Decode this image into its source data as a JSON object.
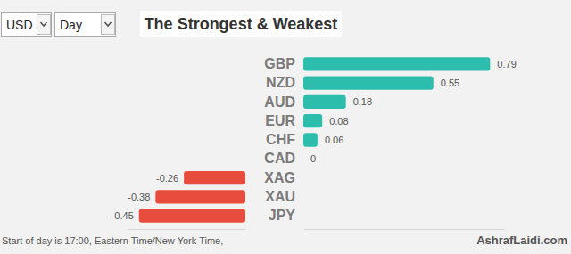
{
  "chart_data": {
    "type": "bar",
    "orientation": "horizontal",
    "title": "The Strongest & Weakest",
    "dropdowns": [
      "USD",
      "Day"
    ],
    "note": "Start of day is 17:00, Eastern Time/New York Time,",
    "source": "AshrafLaidi.com",
    "categories": [
      "GBP",
      "NZD",
      "AUD",
      "EUR",
      "CHF",
      "CAD",
      "XAG",
      "XAU",
      "JPY"
    ],
    "values": [
      0.79,
      0.55,
      0.18,
      0.08,
      0.06,
      0,
      -0.26,
      -0.38,
      -0.45
    ],
    "colors": [
      "#2dbdad",
      "#2dbdad",
      "#2dbdad",
      "#2dbdad",
      "#2dbdad",
      "#2dbdad",
      "#e84c3d",
      "#e84c3d",
      "#e84c3d"
    ],
    "xlim": [
      -0.5,
      0.85
    ],
    "data_labels": true,
    "tick_labels": "y",
    "grid": false
  }
}
